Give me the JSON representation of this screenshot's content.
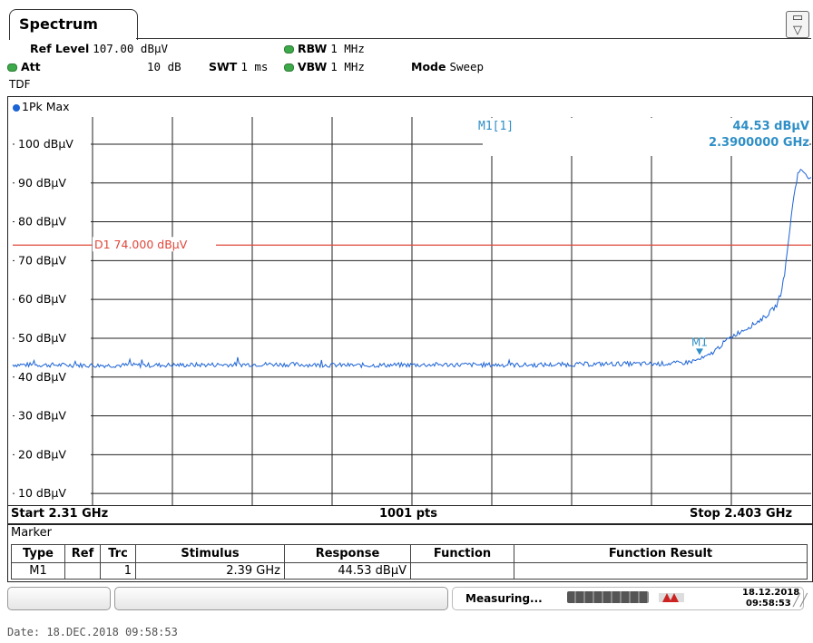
{
  "tab": {
    "title": "Spectrum"
  },
  "settings": {
    "ref_level_label": "Ref Level",
    "ref_level_value": "107.00 dBµV",
    "att_label": "Att",
    "att_value": "10 dB",
    "swt_label": "SWT",
    "swt_value": "1 ms",
    "rbw_label": "RBW",
    "rbw_value": "1 MHz",
    "vbw_label": "VBW",
    "vbw_value": "1 MHz",
    "mode_label": "Mode",
    "mode_value": "Sweep",
    "tdf": "TDF"
  },
  "trace": {
    "label": "1Pk Max",
    "color": "#1c63d6"
  },
  "marker_readout": {
    "name": "M1[1]",
    "level": "44.53 dBµV",
    "frequency": "2.3900000 GHz",
    "marker_label": "M1"
  },
  "display_line": {
    "label": "D1 74.000 dBµV",
    "color": "#e0473a"
  },
  "axis": {
    "start": "Start 2.31 GHz",
    "points": "1001 pts",
    "stop": "Stop 2.403 GHz"
  },
  "chart_data": {
    "type": "line",
    "x_unit": "GHz",
    "y_unit": "dBµV",
    "xlim": [
      2.31,
      2.403
    ],
    "ylim": [
      7,
      107
    ],
    "y_ticks": [
      100,
      90,
      80,
      70,
      60,
      50,
      40,
      30,
      20,
      10
    ],
    "y_tick_labels": [
      "100 dBµV",
      "90 dBµV",
      "80 dBµV",
      "70 dBµV",
      "60 dBµV",
      "50 dBµV",
      "40 dBµV",
      "30 dBµV",
      "20 dBµV",
      "10 dBµV"
    ],
    "display_line_level": 74.0,
    "grid": true,
    "series": [
      {
        "x": [
          2.31,
          2.32,
          2.33,
          2.34,
          2.35,
          2.36,
          2.37,
          2.38,
          2.385,
          2.388,
          2.389,
          2.39,
          2.391,
          2.392,
          2.393,
          2.394,
          2.395,
          2.396,
          2.397,
          2.398,
          2.399,
          2.3995,
          2.4,
          2.4005,
          2.401,
          2.4015,
          2.402,
          2.403
        ],
        "y": [
          43.2,
          43.0,
          43.1,
          43.3,
          43.0,
          43.2,
          43.1,
          43.4,
          43.4,
          43.6,
          44.0,
          44.53,
          45.4,
          47.2,
          49.2,
          50.8,
          52.0,
          53.2,
          54.6,
          56.2,
          58.6,
          61.8,
          68.0,
          78.0,
          87.0,
          93.0,
          93.2,
          91.0
        ]
      }
    ],
    "marker": {
      "name": "M1",
      "x": 2.39,
      "y": 44.53
    }
  },
  "marker_table": {
    "title": "Marker",
    "headers": [
      "Type",
      "Ref",
      "Trc",
      "Stimulus",
      "Response",
      "Function",
      "Function Result"
    ],
    "rows": [
      [
        "M1",
        "",
        "1",
        "2.39 GHz",
        "44.53 dBµV",
        "",
        ""
      ]
    ]
  },
  "status": {
    "measuring": "Measuring...",
    "date": "18.12.2018",
    "time": "09:58:53"
  },
  "footer_date": "Date: 18.DEC.2018  09:58:53"
}
